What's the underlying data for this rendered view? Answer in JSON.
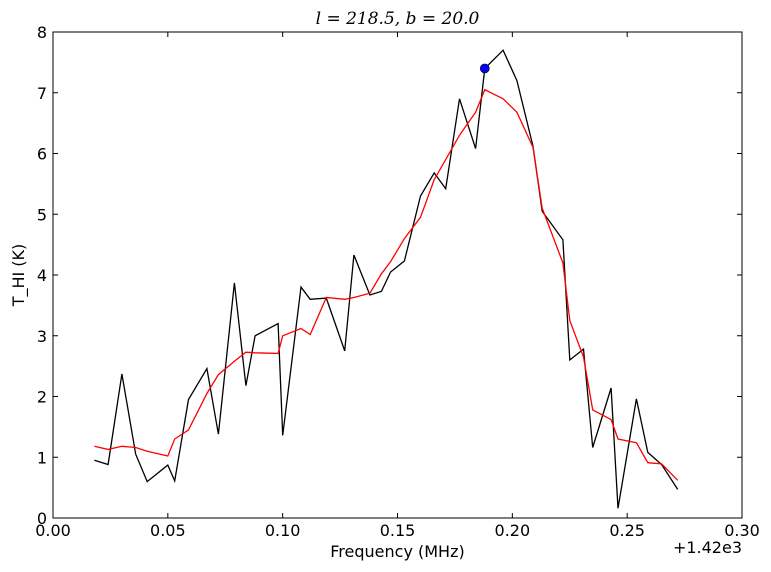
{
  "chart_data": {
    "type": "line",
    "title": "l = 218.5,  b = 20.0",
    "xlabel": "Frequency (MHz)",
    "ylabel": "T_HI (K)",
    "x_offset_label": "+1.42e3",
    "xlim": [
      0.0,
      0.3
    ],
    "ylim": [
      0,
      8
    ],
    "xticks": [
      {
        "value": 0.0,
        "label": "0.00"
      },
      {
        "value": 0.05,
        "label": "0.05"
      },
      {
        "value": 0.1,
        "label": "0.10"
      },
      {
        "value": 0.15,
        "label": "0.15"
      },
      {
        "value": 0.2,
        "label": "0.20"
      },
      {
        "value": 0.25,
        "label": "0.25"
      },
      {
        "value": 0.3,
        "label": "0.30"
      }
    ],
    "yticks": [
      {
        "value": 0,
        "label": "0"
      },
      {
        "value": 1,
        "label": "1"
      },
      {
        "value": 2,
        "label": "2"
      },
      {
        "value": 3,
        "label": "3"
      },
      {
        "value": 4,
        "label": "4"
      },
      {
        "value": 5,
        "label": "5"
      },
      {
        "value": 6,
        "label": "6"
      },
      {
        "value": 7,
        "label": "7"
      },
      {
        "value": 8,
        "label": "8"
      }
    ],
    "grid": false,
    "series": [
      {
        "color": "#000000",
        "x": [
          0.018,
          0.024,
          0.03,
          0.036,
          0.041,
          0.05,
          0.053,
          0.059,
          0.067,
          0.072,
          0.079,
          0.084,
          0.088,
          0.098,
          0.1,
          0.108,
          0.112,
          0.119,
          0.127,
          0.131,
          0.138,
          0.143,
          0.147,
          0.153,
          0.16,
          0.166,
          0.171,
          0.177,
          0.184,
          0.188,
          0.196,
          0.202,
          0.209,
          0.213,
          0.222,
          0.225,
          0.231,
          0.235,
          0.243,
          0.246,
          0.254,
          0.259,
          0.265,
          0.272
        ],
        "y": [
          0.95,
          0.88,
          2.37,
          1.05,
          0.6,
          0.87,
          0.61,
          1.95,
          2.46,
          1.38,
          3.87,
          2.18,
          3.0,
          3.2,
          1.36,
          3.8,
          3.6,
          3.62,
          2.75,
          4.33,
          3.67,
          3.73,
          4.05,
          4.23,
          5.3,
          5.68,
          5.42,
          6.9,
          6.08,
          7.4,
          7.7,
          7.2,
          6.12,
          5.05,
          4.58,
          2.6,
          2.78,
          1.16,
          2.14,
          0.16,
          1.96,
          1.08,
          0.88,
          0.47
        ]
      },
      {
        "color": "#ff0000",
        "x": [
          0.018,
          0.024,
          0.03,
          0.036,
          0.041,
          0.05,
          0.053,
          0.059,
          0.067,
          0.072,
          0.079,
          0.084,
          0.088,
          0.098,
          0.1,
          0.108,
          0.112,
          0.119,
          0.127,
          0.131,
          0.138,
          0.143,
          0.147,
          0.153,
          0.16,
          0.166,
          0.171,
          0.177,
          0.184,
          0.188,
          0.196,
          0.202,
          0.209,
          0.213,
          0.222,
          0.225,
          0.231,
          0.235,
          0.243,
          0.246,
          0.254,
          0.259,
          0.265,
          0.272
        ],
        "y": [
          1.18,
          1.13,
          1.18,
          1.16,
          1.1,
          1.02,
          1.3,
          1.45,
          2.05,
          2.36,
          2.58,
          2.73,
          2.72,
          2.71,
          3.0,
          3.12,
          3.02,
          3.63,
          3.6,
          3.63,
          3.7,
          4.02,
          4.22,
          4.6,
          4.95,
          5.57,
          5.9,
          6.3,
          6.68,
          7.05,
          6.9,
          6.68,
          6.1,
          5.1,
          4.2,
          3.25,
          2.65,
          1.78,
          1.62,
          1.3,
          1.24,
          0.91,
          0.89,
          0.62
        ]
      }
    ],
    "marker": {
      "x": 0.188,
      "y": 7.4,
      "color": "#0000ff"
    }
  }
}
